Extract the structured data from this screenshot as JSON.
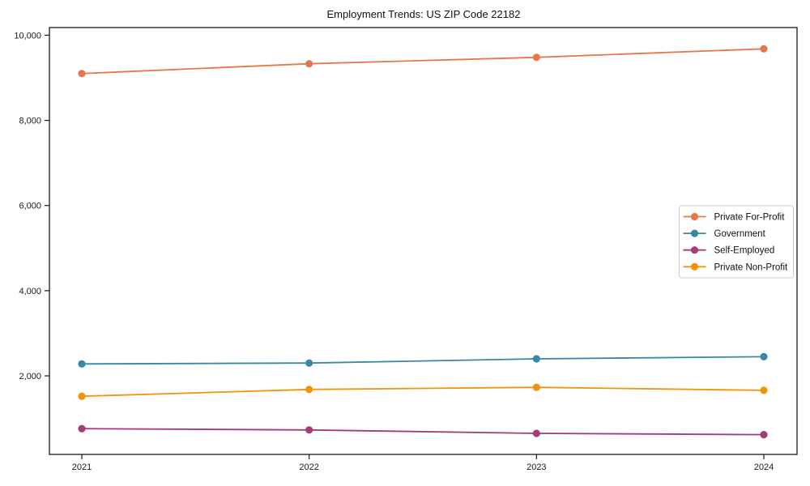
{
  "page": {
    "background_color": "#ffffff",
    "text_color": "#1a1a1a",
    "axis_color": "#1a1a1a",
    "legend_border_color": "#cccccc",
    "legend_background_color": "#ffffff"
  },
  "chart_data": {
    "type": "line",
    "title": "Employment Trends: US ZIP Code 22182",
    "xlabel": "",
    "ylabel": "",
    "x": [
      2021,
      2022,
      2023,
      2024
    ],
    "x_tick_labels": [
      "2021",
      "2022",
      "2023",
      "2024"
    ],
    "y_tick_values": [
      2000,
      4000,
      6000,
      8000,
      10000
    ],
    "y_tick_labels": [
      "2,000",
      "4,000",
      "6,000",
      "8,000",
      "10,000"
    ],
    "ylim": [
      155,
      10180
    ],
    "grid": false,
    "marker": "o",
    "legend_position": "center-right",
    "series": [
      {
        "name": "Private For-Profit",
        "color": "#E8764B",
        "values": [
          9100,
          9330,
          9480,
          9680
        ]
      },
      {
        "name": "Government",
        "color": "#3A87A6",
        "values": [
          2280,
          2300,
          2400,
          2450
        ]
      },
      {
        "name": "Self-Employed",
        "color": "#A53B78",
        "values": [
          760,
          730,
          650,
          620
        ]
      },
      {
        "name": "Private Non-Profit",
        "color": "#F0940A",
        "values": [
          1520,
          1680,
          1730,
          1660
        ]
      }
    ]
  }
}
